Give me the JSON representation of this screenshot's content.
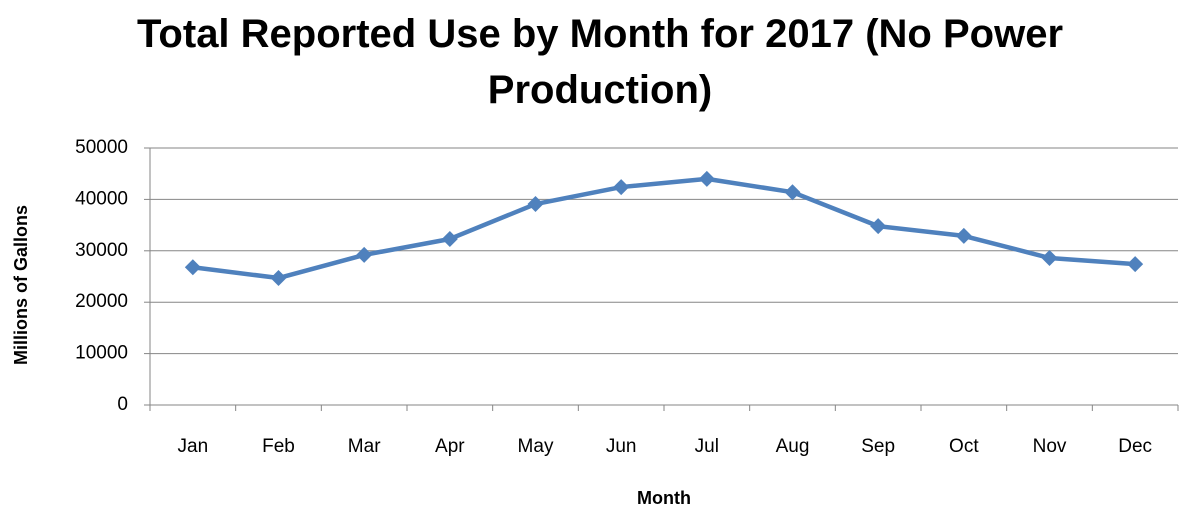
{
  "chart_data": {
    "type": "line",
    "title": "Total Reported Use by Month for 2017 (No Power Production)",
    "x_label": "Month",
    "y_label": "Millions of Gallons",
    "categories": [
      "Jan",
      "Feb",
      "Mar",
      "Apr",
      "May",
      "Jun",
      "Jul",
      "Aug",
      "Sep",
      "Oct",
      "Nov",
      "Dec"
    ],
    "series": [
      {
        "name": "Total Reported Use",
        "color": "#4f81bd",
        "values": [
          26800,
          24700,
          29200,
          32300,
          39100,
          42400,
          44000,
          41400,
          34800,
          32900,
          28600,
          27400
        ]
      }
    ],
    "ylim": [
      0,
      50000
    ],
    "yticks": [
      0,
      10000,
      20000,
      30000,
      40000,
      50000
    ],
    "grid": true,
    "marker": "diamond",
    "legend": false
  }
}
